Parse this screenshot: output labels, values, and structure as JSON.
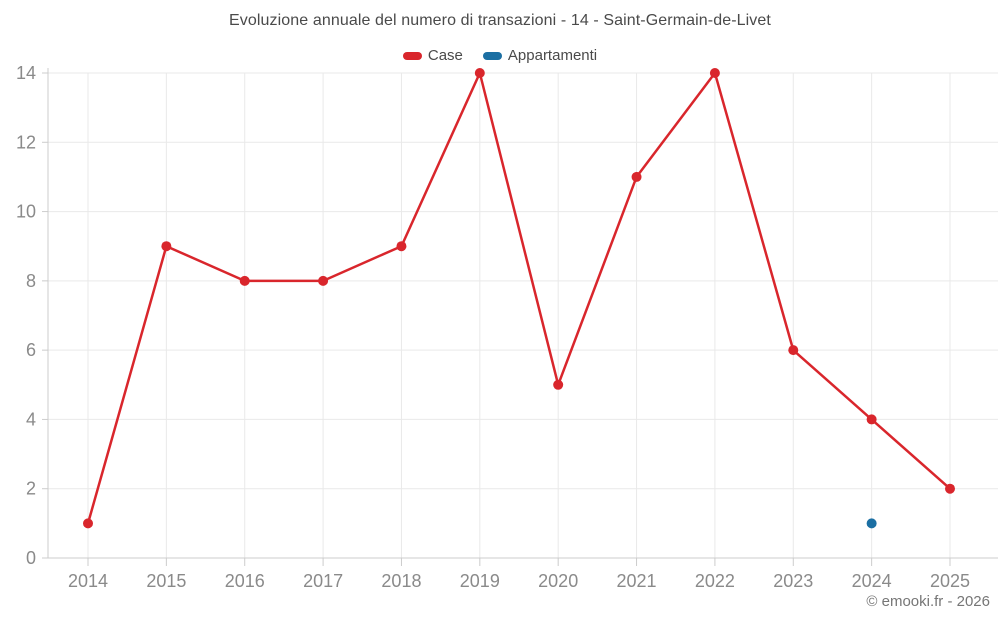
{
  "title": "Evoluzione annuale del numero di transazioni - 14 - Saint-Germain-de-Livet",
  "legend": {
    "items": [
      {
        "key": "case",
        "label": "Case",
        "color": "#d9262c"
      },
      {
        "key": "appartamenti",
        "label": "Appartamenti",
        "color": "#1b6fa3"
      }
    ]
  },
  "footer": {
    "copyright": "© emooki.fr - 2026"
  },
  "chart_data": {
    "type": "line",
    "x": [
      "2014",
      "2015",
      "2016",
      "2017",
      "2018",
      "2019",
      "2020",
      "2021",
      "2022",
      "2023",
      "2024",
      "2025"
    ],
    "series": [
      {
        "name": "Case",
        "color": "#d9262c",
        "values": [
          1,
          9,
          8,
          8,
          9,
          14,
          5,
          11,
          14,
          6,
          4,
          2
        ]
      },
      {
        "name": "Appartamenti",
        "color": "#1b6fa3",
        "values": [
          null,
          null,
          null,
          null,
          null,
          null,
          null,
          null,
          null,
          null,
          1,
          null
        ]
      }
    ],
    "title": "Evoluzione annuale del numero di transazioni - 14 - Saint-Germain-de-Livet",
    "xlabel": "",
    "ylabel": "",
    "ylim": [
      0,
      14
    ],
    "yticks": [
      0,
      2,
      4,
      6,
      8,
      10,
      12,
      14
    ],
    "grid": true,
    "legend_position": "top",
    "colors": {
      "grid_line": "#e9e9e9",
      "axis_line": "#cccccc",
      "tick_label": "#8a8a8a"
    }
  }
}
